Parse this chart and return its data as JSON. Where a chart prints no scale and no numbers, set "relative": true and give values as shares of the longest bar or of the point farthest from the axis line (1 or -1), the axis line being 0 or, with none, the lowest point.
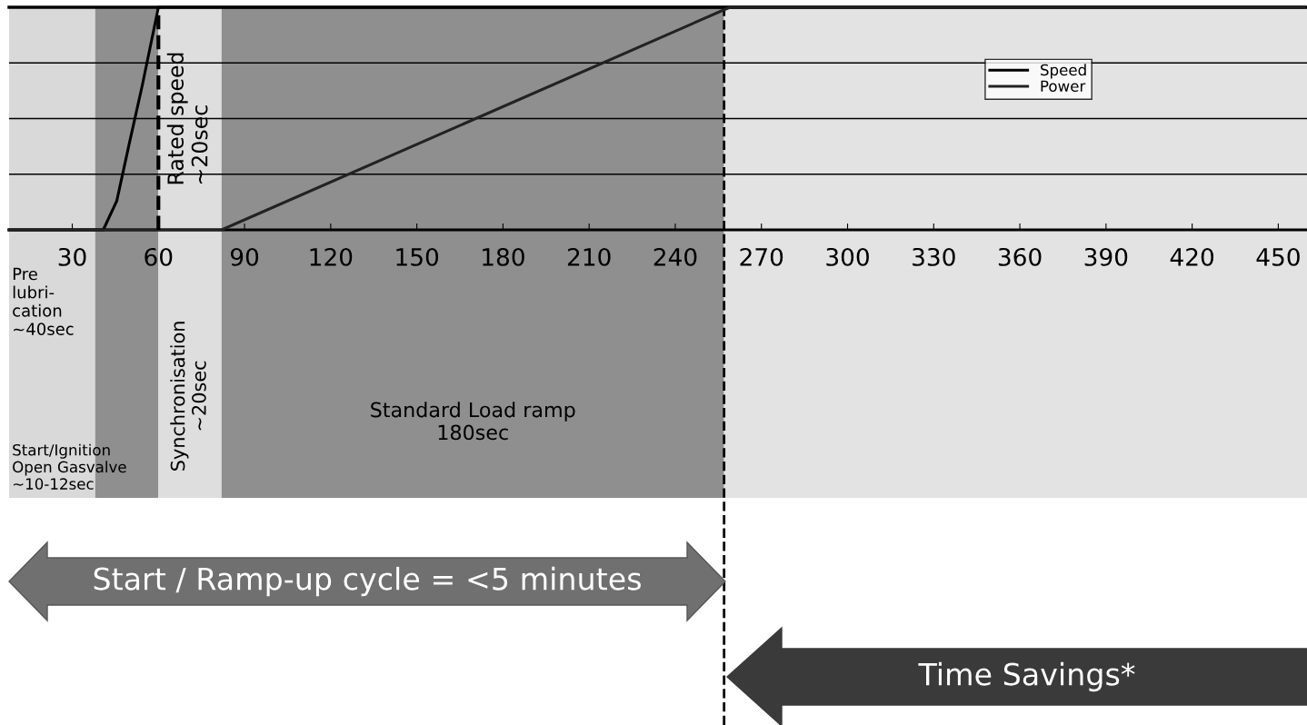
{
  "chart_data": {
    "type": "line",
    "relative": true,
    "xlim": [
      8,
      460
    ],
    "xticks": [
      30,
      60,
      90,
      120,
      150,
      180,
      210,
      240,
      270,
      300,
      330,
      360,
      390,
      420,
      450
    ],
    "series": [
      {
        "name": "Speed",
        "color": "#000000",
        "x": [
          8,
          40.8,
          45.5,
          49.9,
          54.4,
          60,
          459
        ],
        "values": [
          0,
          0,
          0.13,
          0.39,
          0.65,
          1,
          1
        ]
      },
      {
        "name": "Power",
        "color": "#222222",
        "x": [
          8,
          82,
          259,
          459
        ],
        "values": [
          0,
          0,
          1,
          1
        ]
      }
    ],
    "bands": [
      {
        "axis": "x",
        "from": 8,
        "to": 38,
        "label": "Pre\nlubri-\ncation\n~40sec",
        "color": "#d9d9d9"
      },
      {
        "axis": "x",
        "from": 38,
        "to": 60,
        "label": "Start/Ignition\nOpen Gasvalve\n~10-12sec",
        "color": "#8f8f8f"
      },
      {
        "axis": "x",
        "from": 60,
        "to": 82,
        "label": "Synchronisation\n~20sec",
        "color": "#dedede"
      },
      {
        "axis": "x",
        "from": 82,
        "to": 257,
        "label": "Standard Load ramp\n180sec",
        "color": "#8f8f8f"
      },
      {
        "axis": "x",
        "from": 257,
        "to": 460,
        "color": "#e3e3e3"
      }
    ],
    "ref_lines": [
      {
        "axis": "x",
        "value": 60,
        "label": "Rated speed\n~20sec",
        "line_style": "dashed",
        "color": "#000000"
      },
      {
        "axis": "x",
        "value": 257,
        "line_style": "dashed",
        "color": "#000000"
      }
    ],
    "annotations": [
      "Start / Ramp-up cycle = <5 minutes",
      "Time Savings*"
    ],
    "grid": "y",
    "legend": "top right",
    "line_style": "solid",
    "marker": "none"
  }
}
